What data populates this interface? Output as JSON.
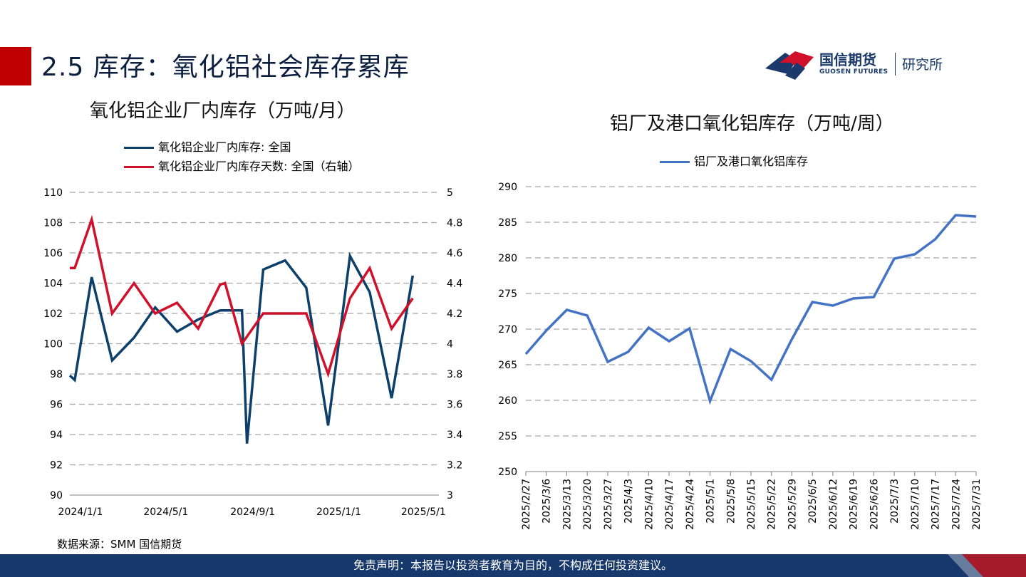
{
  "header": {
    "title": "2.5 库存：氧化铝社会库存累库",
    "accent_color": "#c00000"
  },
  "logo": {
    "name_cn": "国信期货",
    "name_en": "GUOSEN FUTURES",
    "dept": "研究所",
    "icon": "guosen-logo-icon"
  },
  "colors": {
    "navy": "#0d3f6b",
    "red": "#d0112b",
    "blue": "#4472c4",
    "grid": "#a6a6a6"
  },
  "chart_data": [
    {
      "type": "line",
      "title": "氧化铝企业厂内库存（万吨/月）",
      "x": [
        "2024/1/1",
        "2024/2/1",
        "2024/3/1",
        "2024/4/1",
        "2024/5/1",
        "2024/6/1",
        "2024/7/1",
        "2024/8/1",
        "2024/9/1",
        "2024/10/1",
        "2024/11/1",
        "2024/12/1",
        "2025/1/1",
        "2025/2/1",
        "2025/3/1",
        "2025/4/1",
        "2025/5/1",
        "2025/6/1"
      ],
      "x_tick_labels": [
        "2024/1/1",
        "2024/5/1",
        "2024/9/1",
        "2025/1/1",
        "2025/5/1"
      ],
      "series": [
        {
          "name": "氧化铝企业厂内库存: 全国",
          "axis": "left",
          "x": [
            "2024/1/1",
            "2024/1/8",
            "2024/2/1",
            "2024/3/1",
            "2024/4/1",
            "2024/5/1",
            "2024/6/1",
            "2024/7/1",
            "2024/8/1",
            "2024/9/1",
            "2024/9/8",
            "2024/10/1",
            "2024/11/1",
            "2024/12/1",
            "2025/1/1",
            "2025/2/1",
            "2025/3/1",
            "2025/4/1",
            "2025/5/1"
          ],
          "values": [
            97.9,
            97.6,
            104.4,
            98.9,
            100.4,
            102.4,
            100.8,
            101.6,
            102.2,
            102.2,
            93.4,
            104.9,
            105.5,
            103.7,
            94.6,
            105.8,
            103.4,
            96.4,
            104.5
          ]
        },
        {
          "name": "氧化铝企业厂内库存天数: 全国（右轴）",
          "axis": "right",
          "x": [
            "2024/1/1",
            "2024/1/8",
            "2024/2/1",
            "2024/3/1",
            "2024/4/1",
            "2024/5/1",
            "2024/6/1",
            "2024/7/1",
            "2024/8/1",
            "2024/8/8",
            "2024/9/1",
            "2024/10/1",
            "2024/11/1",
            "2024/12/1",
            "2025/1/1",
            "2025/2/1",
            "2025/3/1",
            "2025/4/1",
            "2025/5/1"
          ],
          "values": [
            4.5,
            4.5,
            4.82,
            4.2,
            4.4,
            4.2,
            4.27,
            4.1,
            4.39,
            4.4,
            4.0,
            4.2,
            4.2,
            4.2,
            3.8,
            4.3,
            4.5,
            4.1,
            4.3
          ]
        }
      ],
      "ylim": [
        90,
        110
      ],
      "yticks": [
        110,
        108,
        106,
        104,
        102,
        100,
        98,
        96,
        94,
        92,
        90
      ],
      "y2lim": [
        3,
        5
      ],
      "y2ticks": [
        "5",
        "4.8",
        "4.6",
        "4.4",
        "4.2",
        "4",
        "3.8",
        "3.6",
        "3.4",
        "3.2",
        "3"
      ],
      "grid": true,
      "legend": "top"
    },
    {
      "type": "line",
      "title": "铝厂及港口氧化铝库存（万吨/周）",
      "categories": [
        "2025/2/27",
        "2025/3/6",
        "2025/3/13",
        "2025/3/20",
        "2025/3/27",
        "2025/4/3",
        "2025/4/10",
        "2025/4/17",
        "2025/4/24",
        "2025/5/1",
        "2025/5/8",
        "2025/5/15",
        "2025/5/22",
        "2025/5/29",
        "2025/6/5",
        "2025/6/12",
        "2025/6/19",
        "2025/6/26",
        "2025/7/3",
        "2025/7/10",
        "2025/7/17",
        "2025/7/24",
        "2025/7/31"
      ],
      "series": [
        {
          "name": "铝厂及港口氧化铝库存",
          "values": [
            266.5,
            269.8,
            272.7,
            271.9,
            265.4,
            266.8,
            270.2,
            268.3,
            270.1,
            259.9,
            267.2,
            265.5,
            262.9,
            268.6,
            273.8,
            273.3,
            274.3,
            274.5,
            279.9,
            280.5,
            282.6,
            286.0,
            285.8
          ]
        }
      ],
      "ylim": [
        250,
        290
      ],
      "yticks": [
        290,
        285,
        280,
        275,
        270,
        265,
        260,
        255,
        250
      ],
      "grid": true,
      "legend": "top"
    }
  ],
  "source": "数据来源：SMM 国信期货",
  "footer": {
    "disclaimer": "免责声明：本报告以投资者教育为目的，不构成任何投资建议。"
  }
}
